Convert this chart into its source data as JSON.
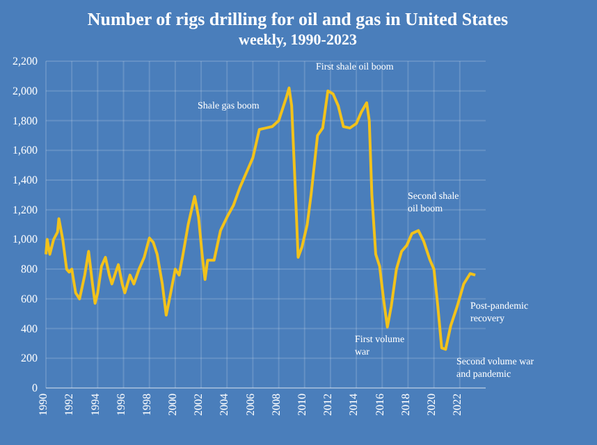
{
  "chart_data": {
    "type": "line",
    "title": "Number of rigs drilling for oil and gas in United States",
    "subtitle": "weekly, 1990-2023",
    "x": [
      1990.0,
      1990.1,
      1990.3,
      1990.6,
      1990.9,
      1991.0,
      1991.3,
      1991.6,
      1991.8,
      1992.0,
      1992.3,
      1992.6,
      1992.8,
      1993.0,
      1993.3,
      1993.6,
      1993.8,
      1994.0,
      1994.3,
      1994.6,
      1994.9,
      1995.1,
      1995.4,
      1995.6,
      1995.9,
      1996.1,
      1996.5,
      1996.8,
      1997.2,
      1997.6,
      1998.0,
      1998.3,
      1998.6,
      1999.0,
      1999.3,
      1999.6,
      2000.0,
      2000.3,
      2000.6,
      2001.0,
      2001.5,
      2001.8,
      2002.1,
      2002.3,
      2002.5,
      2003.0,
      2003.5,
      2004.0,
      2004.5,
      2005.0,
      2005.5,
      2006.0,
      2006.5,
      2007.0,
      2007.5,
      2008.0,
      2008.6,
      2008.8,
      2009.0,
      2009.3,
      2009.5,
      2009.8,
      2010.2,
      2010.5,
      2011.0,
      2011.4,
      2011.8,
      2012.2,
      2012.6,
      2013.0,
      2013.5,
      2014.0,
      2014.4,
      2014.8,
      2015.0,
      2015.2,
      2015.5,
      2015.8,
      2016.1,
      2016.4,
      2016.7,
      2017.1,
      2017.5,
      2017.9,
      2018.3,
      2018.8,
      2019.2,
      2019.7,
      2020.0,
      2020.3,
      2020.6,
      2020.9,
      2021.3,
      2021.8,
      2022.3,
      2022.8,
      2023.2
    ],
    "series": [
      {
        "color": "#f2c21b",
        "values": [
          900,
          1000,
          900,
          1000,
          1050,
          1140,
          1000,
          800,
          780,
          800,
          640,
          600,
          680,
          760,
          920,
          700,
          570,
          640,
          820,
          880,
          760,
          700,
          780,
          830,
          700,
          640,
          760,
          700,
          800,
          880,
          1010,
          980,
          900,
          700,
          490,
          620,
          800,
          760,
          900,
          1100,
          1290,
          1150,
          880,
          730,
          860,
          860,
          1060,
          1150,
          1230,
          1350,
          1450,
          1550,
          1740,
          1750,
          1760,
          1800,
          1960,
          2020,
          1900,
          1300,
          880,
          950,
          1100,
          1300,
          1700,
          1750,
          2000,
          1980,
          1900,
          1760,
          1750,
          1780,
          1860,
          1920,
          1800,
          1300,
          900,
          820,
          600,
          410,
          550,
          800,
          920,
          960,
          1040,
          1060,
          990,
          860,
          800,
          550,
          270,
          260,
          420,
          550,
          700,
          770,
          760
        ]
      }
    ],
    "xlim": [
      1990,
      2024
    ],
    "xticks": [
      1990,
      1992,
      1994,
      1996,
      1998,
      2000,
      2002,
      2004,
      2006,
      2008,
      2010,
      2012,
      2014,
      2016,
      2018,
      2020,
      2022
    ],
    "ylim": [
      0,
      2200
    ],
    "yticks": [
      0,
      200,
      400,
      600,
      800,
      {
        "value": 1000,
        "label": "1,000"
      },
      {
        "value": 1200,
        "label": "1,200"
      },
      {
        "value": 1400,
        "label": "1,400"
      },
      {
        "value": 1600,
        "label": "1,600"
      },
      {
        "value": 1800,
        "label": "1,800"
      },
      {
        "value": 2000,
        "label": "2,000"
      },
      {
        "value": 2200,
        "label": "2,200"
      }
    ],
    "grid": true,
    "marker": "none",
    "line_style": "solid",
    "annotations": [
      "Shale gas boom",
      "First shale oil boom",
      "Second shale\noil boom",
      "First volume\nwar",
      "Post-pandemic\nrecovery",
      "Second volume war\nand pandemic"
    ]
  }
}
